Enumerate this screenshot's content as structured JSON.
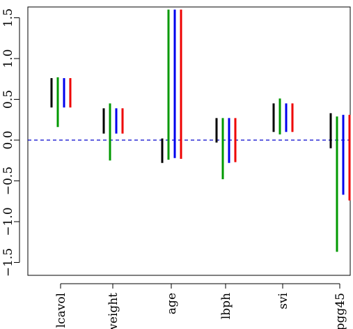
{
  "chart_data": {
    "type": "interval",
    "title": "",
    "xlabel": "",
    "ylabel": "",
    "ylim": [
      -1.5,
      1.5
    ],
    "yticks": [
      -1.5,
      -1.0,
      -0.5,
      0.0,
      0.5,
      1.0,
      1.5
    ],
    "ytick_labels": [
      "−1.5",
      "−1.0",
      "−0.5",
      "0.0",
      "0.5",
      "1.0",
      "1.5"
    ],
    "reference_line": {
      "y": 0,
      "style": "dashed",
      "color": "#0000cc"
    },
    "categories": [
      "lcavol",
      "lweight",
      "age",
      "lbph",
      "svi",
      "pgg45"
    ],
    "category_labels_display": [
      "lcavol",
      "weight",
      "age",
      "lbph",
      "svi",
      "pgg45"
    ],
    "series": [
      {
        "color": "#000000",
        "intervals": [
          [
            0.4,
            0.76
          ],
          [
            0.08,
            0.39
          ],
          [
            -0.28,
            0.02
          ],
          [
            -0.03,
            0.27
          ],
          [
            0.1,
            0.45
          ],
          [
            -0.1,
            0.33
          ]
        ]
      },
      {
        "color": "#009900",
        "intervals": [
          [
            0.16,
            0.77
          ],
          [
            -0.25,
            0.45
          ],
          [
            -0.24,
            1.6
          ],
          [
            -0.48,
            0.27
          ],
          [
            0.07,
            0.51
          ],
          [
            -1.37,
            0.29
          ]
        ]
      },
      {
        "color": "#0000ee",
        "intervals": [
          [
            0.4,
            0.76
          ],
          [
            0.08,
            0.39
          ],
          [
            -0.22,
            1.6
          ],
          [
            -0.28,
            0.27
          ],
          [
            0.1,
            0.45
          ],
          [
            -0.67,
            0.31
          ]
        ]
      },
      {
        "color": "#ee0000",
        "intervals": [
          [
            0.4,
            0.76
          ],
          [
            0.08,
            0.39
          ],
          [
            -0.23,
            1.6
          ],
          [
            -0.27,
            0.27
          ],
          [
            0.1,
            0.45
          ],
          [
            -0.74,
            0.31
          ]
        ]
      }
    ]
  }
}
